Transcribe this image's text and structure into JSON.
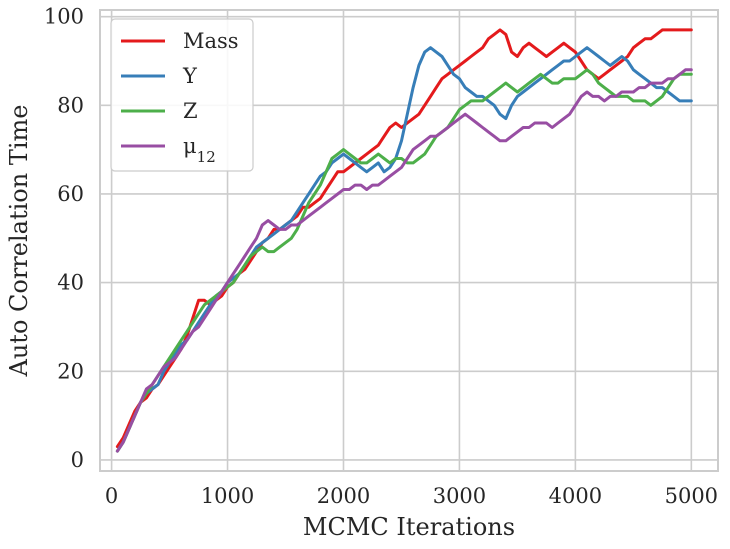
{
  "chart_data": {
    "type": "line",
    "xlabel": "MCMC Iterations",
    "ylabel": "Auto Correlation Time",
    "xlim": [
      -100,
      5230
    ],
    "ylim": [
      -2.5,
      101.5
    ],
    "xticks": [
      0,
      1000,
      2000,
      3000,
      4000,
      5000
    ],
    "yticks": [
      0,
      20,
      40,
      60,
      80,
      100
    ],
    "xtick_labels": [
      "0",
      "1000",
      "2000",
      "3000",
      "4000",
      "5000"
    ],
    "ytick_labels": [
      "0",
      "20",
      "40",
      "60",
      "80",
      "100"
    ],
    "grid": true,
    "legend_position": "upper-left",
    "series": [
      {
        "name": "Mass",
        "color": "#e41a1c",
        "x": [
          50,
          100,
          150,
          200,
          250,
          300,
          350,
          400,
          450,
          500,
          550,
          600,
          650,
          700,
          750,
          800,
          850,
          900,
          950,
          1000,
          1050,
          1100,
          1150,
          1200,
          1250,
          1300,
          1350,
          1400,
          1450,
          1500,
          1550,
          1600,
          1650,
          1700,
          1750,
          1800,
          1850,
          1900,
          1950,
          2000,
          2050,
          2100,
          2150,
          2200,
          2250,
          2300,
          2350,
          2400,
          2450,
          2500,
          2550,
          2600,
          2650,
          2700,
          2750,
          2800,
          2850,
          2900,
          2950,
          3000,
          3050,
          3100,
          3150,
          3200,
          3250,
          3300,
          3350,
          3400,
          3450,
          3500,
          3550,
          3600,
          3650,
          3700,
          3750,
          3800,
          3850,
          3900,
          3950,
          4000,
          4050,
          4100,
          4150,
          4200,
          4250,
          4300,
          4350,
          4400,
          4450,
          4500,
          4550,
          4600,
          4650,
          4700,
          4750,
          4800,
          4850,
          4900,
          4950,
          5000
        ],
        "y": [
          3,
          5,
          8,
          11,
          13,
          14,
          16,
          17,
          19,
          21,
          23,
          25,
          28,
          32,
          36,
          36,
          35,
          36,
          37,
          39,
          40,
          42,
          43,
          45,
          47,
          49,
          50,
          52,
          52,
          53,
          54,
          55,
          57,
          57,
          58,
          59,
          61,
          63,
          65,
          65,
          66,
          67,
          68,
          69,
          70,
          71,
          73,
          75,
          76,
          75,
          76,
          77,
          78,
          80,
          82,
          84,
          86,
          87,
          88,
          89,
          90,
          91,
          92,
          93,
          95,
          96,
          97,
          96,
          92,
          91,
          93,
          94,
          93,
          92,
          91,
          92,
          93,
          94,
          93,
          92,
          90,
          88,
          87,
          86,
          87,
          88,
          89,
          90,
          91,
          93,
          94,
          95,
          95,
          96,
          97,
          97,
          97,
          97,
          97,
          97
        ]
      },
      {
        "name": "Y",
        "color": "#377eb8",
        "x": [
          50,
          100,
          150,
          200,
          250,
          300,
          350,
          400,
          450,
          500,
          550,
          600,
          650,
          700,
          750,
          800,
          850,
          900,
          950,
          1000,
          1050,
          1100,
          1150,
          1200,
          1250,
          1300,
          1350,
          1400,
          1450,
          1500,
          1550,
          1600,
          1650,
          1700,
          1750,
          1800,
          1850,
          1900,
          1950,
          2000,
          2050,
          2100,
          2150,
          2200,
          2250,
          2300,
          2350,
          2400,
          2450,
          2500,
          2550,
          2600,
          2650,
          2700,
          2750,
          2800,
          2850,
          2900,
          2950,
          3000,
          3050,
          3100,
          3150,
          3200,
          3250,
          3300,
          3350,
          3400,
          3450,
          3500,
          3550,
          3600,
          3650,
          3700,
          3750,
          3800,
          3850,
          3900,
          3950,
          4000,
          4050,
          4100,
          4150,
          4200,
          4250,
          4300,
          4350,
          4400,
          4450,
          4500,
          4550,
          4600,
          4650,
          4700,
          4750,
          4800,
          4850,
          4900,
          4950,
          5000
        ],
        "y": [
          2,
          4,
          7,
          10,
          13,
          15,
          16,
          17,
          20,
          22,
          24,
          26,
          27,
          29,
          31,
          33,
          35,
          37,
          38,
          40,
          41,
          42,
          44,
          46,
          48,
          49,
          50,
          51,
          52,
          53,
          54,
          56,
          58,
          60,
          62,
          64,
          65,
          67,
          68,
          69,
          68,
          67,
          66,
          65,
          66,
          67,
          65,
          66,
          68,
          72,
          78,
          84,
          89,
          92,
          93,
          92,
          91,
          89,
          87,
          86,
          84,
          83,
          82,
          82,
          81,
          80,
          78,
          77,
          80,
          82,
          83,
          84,
          85,
          86,
          87,
          88,
          89,
          90,
          90,
          91,
          92,
          93,
          92,
          91,
          90,
          89,
          90,
          91,
          90,
          88,
          87,
          86,
          85,
          84,
          84,
          83,
          82,
          81,
          81,
          81
        ]
      },
      {
        "name": "Z",
        "color": "#4daf4a",
        "x": [
          50,
          100,
          150,
          200,
          250,
          300,
          350,
          400,
          450,
          500,
          550,
          600,
          650,
          700,
          750,
          800,
          850,
          900,
          950,
          1000,
          1050,
          1100,
          1150,
          1200,
          1250,
          1300,
          1350,
          1400,
          1450,
          1500,
          1550,
          1600,
          1650,
          1700,
          1750,
          1800,
          1850,
          1900,
          1950,
          2000,
          2050,
          2100,
          2150,
          2200,
          2250,
          2300,
          2350,
          2400,
          2450,
          2500,
          2550,
          2600,
          2650,
          2700,
          2750,
          2800,
          2850,
          2900,
          2950,
          3000,
          3050,
          3100,
          3150,
          3200,
          3250,
          3300,
          3350,
          3400,
          3450,
          3500,
          3550,
          3600,
          3650,
          3700,
          3750,
          3800,
          3850,
          3900,
          3950,
          4000,
          4050,
          4100,
          4150,
          4200,
          4250,
          4300,
          4350,
          4400,
          4450,
          4500,
          4550,
          4600,
          4650,
          4700,
          4750,
          4800,
          4850,
          4900,
          4950,
          5000
        ],
        "y": [
          2,
          4,
          7,
          10,
          13,
          15,
          17,
          19,
          21,
          23,
          25,
          27,
          29,
          31,
          33,
          35,
          36,
          37,
          38,
          39,
          40,
          42,
          44,
          46,
          47,
          48,
          47,
          47,
          48,
          49,
          50,
          52,
          55,
          58,
          60,
          62,
          65,
          68,
          69,
          70,
          69,
          68,
          67,
          67,
          68,
          69,
          68,
          67,
          68,
          68,
          67,
          67,
          68,
          69,
          71,
          73,
          74,
          75,
          77,
          79,
          80,
          81,
          81,
          81,
          82,
          83,
          84,
          85,
          84,
          83,
          84,
          85,
          86,
          87,
          86,
          85,
          85,
          86,
          86,
          86,
          87,
          88,
          87,
          85,
          84,
          83,
          82,
          82,
          82,
          81,
          81,
          81,
          80,
          81,
          82,
          84,
          86,
          87,
          87,
          87
        ]
      },
      {
        "name": "μ12",
        "color": "#984ea3",
        "x": [
          50,
          100,
          150,
          200,
          250,
          300,
          350,
          400,
          450,
          500,
          550,
          600,
          650,
          700,
          750,
          800,
          850,
          900,
          950,
          1000,
          1050,
          1100,
          1150,
          1200,
          1250,
          1300,
          1350,
          1400,
          1450,
          1500,
          1550,
          1600,
          1650,
          1700,
          1750,
          1800,
          1850,
          1900,
          1950,
          2000,
          2050,
          2100,
          2150,
          2200,
          2250,
          2300,
          2350,
          2400,
          2450,
          2500,
          2550,
          2600,
          2650,
          2700,
          2750,
          2800,
          2850,
          2900,
          2950,
          3000,
          3050,
          3100,
          3150,
          3200,
          3250,
          3300,
          3350,
          3400,
          3450,
          3500,
          3550,
          3600,
          3650,
          3700,
          3750,
          3800,
          3850,
          3900,
          3950,
          4000,
          4050,
          4100,
          4150,
          4200,
          4250,
          4300,
          4350,
          4400,
          4450,
          4500,
          4550,
          4600,
          4650,
          4700,
          4750,
          4800,
          4850,
          4900,
          4950,
          5000
        ],
        "y": [
          2,
          4,
          7,
          10,
          13,
          16,
          17,
          19,
          21,
          22,
          23,
          25,
          27,
          29,
          30,
          32,
          34,
          36,
          38,
          40,
          42,
          44,
          46,
          48,
          50,
          53,
          54,
          53,
          52,
          52,
          53,
          53,
          54,
          55,
          56,
          57,
          58,
          59,
          60,
          61,
          61,
          62,
          62,
          61,
          62,
          62,
          63,
          64,
          65,
          66,
          68,
          70,
          71,
          72,
          73,
          73,
          74,
          75,
          76,
          77,
          78,
          77,
          76,
          75,
          74,
          73,
          72,
          72,
          73,
          74,
          75,
          75,
          76,
          76,
          76,
          75,
          76,
          77,
          78,
          80,
          82,
          83,
          82,
          82,
          81,
          82,
          82,
          83,
          83,
          83,
          84,
          84,
          85,
          85,
          85,
          86,
          86,
          87,
          88,
          88
        ]
      }
    ]
  }
}
